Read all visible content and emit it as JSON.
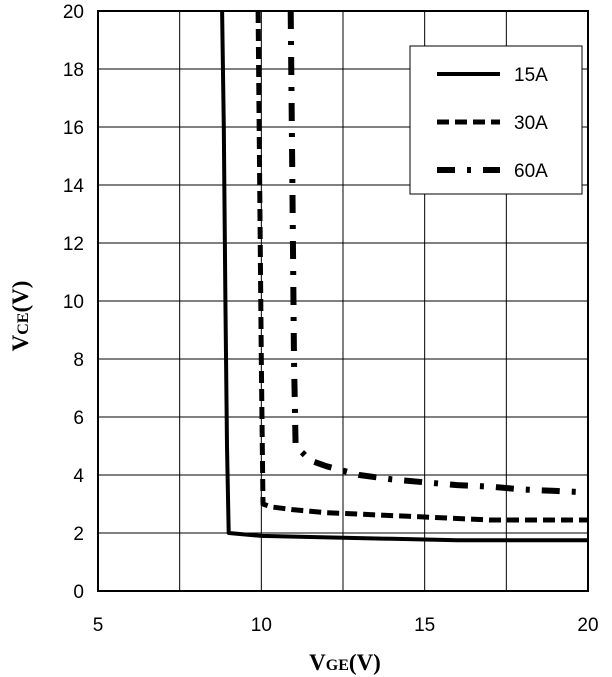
{
  "chart_data": {
    "type": "line",
    "title": "",
    "xlabel": {
      "main": "V",
      "sub": "GE",
      "unit": "(V)"
    },
    "ylabel": {
      "main": "V",
      "sub": "CE",
      "unit": "(V)"
    },
    "xlim": [
      5,
      20
    ],
    "ylim": [
      0,
      20
    ],
    "xticks": [
      5,
      10,
      15,
      20
    ],
    "yticks": [
      0,
      2,
      4,
      6,
      8,
      10,
      12,
      14,
      16,
      18,
      20
    ],
    "x_minor_grid": [
      7.5,
      12.5,
      17.5
    ],
    "grid": true,
    "legend_position": "top-right",
    "series": [
      {
        "name": "15A",
        "style": "solid",
        "x": [
          8.8,
          8.85,
          8.9,
          8.95,
          9.0,
          10.0,
          12.0,
          14.0,
          16.0,
          18.0,
          20.0
        ],
        "y": [
          20,
          16,
          10,
          5,
          2.0,
          1.9,
          1.85,
          1.8,
          1.75,
          1.75,
          1.75
        ]
      },
      {
        "name": "30A",
        "style": "dashed",
        "x": [
          9.9,
          9.95,
          10.0,
          10.03,
          10.05,
          10.3,
          11,
          12,
          13,
          14,
          15,
          16,
          17,
          18,
          19,
          20
        ],
        "y": [
          20,
          14,
          8,
          5,
          3.0,
          2.9,
          2.8,
          2.7,
          2.65,
          2.6,
          2.55,
          2.5,
          2.45,
          2.45,
          2.45,
          2.45
        ]
      },
      {
        "name": "60A",
        "style": "dashdot",
        "x": [
          10.9,
          10.95,
          11.0,
          11.05,
          11.5,
          12,
          13,
          14,
          15,
          16,
          17,
          18,
          19,
          20
        ],
        "y": [
          20,
          14,
          8,
          5.0,
          4.5,
          4.3,
          4.0,
          3.85,
          3.75,
          3.65,
          3.6,
          3.5,
          3.45,
          3.4
        ]
      }
    ]
  }
}
